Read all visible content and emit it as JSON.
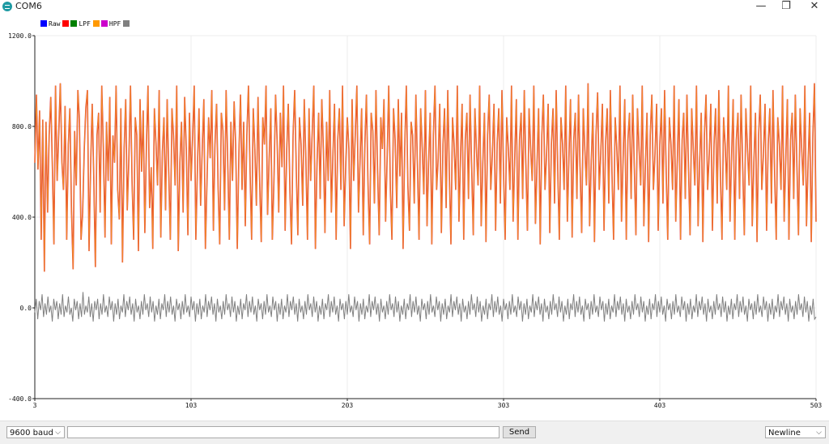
{
  "window": {
    "title": "COM6",
    "minimize": "—",
    "restore": "❐",
    "close": "✕"
  },
  "legend": [
    {
      "label": "Raw",
      "color": "#0000ff"
    },
    {
      "label": "LPF",
      "color": "#ff0000"
    },
    {
      "label": "HPF",
      "color": "#ff00ff"
    }
  ],
  "legend_colors": [
    "#0000ff",
    "#ff0000",
    "#008000",
    "#ff9900",
    "#cc00cc",
    "#808080"
  ],
  "bottom_bar": {
    "baud": "9600 baud",
    "input_value": "",
    "send_label": "Send",
    "line_ending": "Newline"
  },
  "chart_data": {
    "type": "line",
    "ylim": [
      -400,
      1200
    ],
    "xlim": [
      3,
      503
    ],
    "yticks": [
      "1200.0",
      "800.0",
      "400.0",
      "0.0",
      "-400.0"
    ],
    "xticks": [
      "3",
      "103",
      "203",
      "303",
      "403",
      "503"
    ],
    "grid": true,
    "series": [
      {
        "name": "LPF",
        "color": "#f28c28",
        "values": [
          640,
          940,
          610,
          870,
          300,
          830,
          160,
          820,
          420,
          760,
          930,
          620,
          280,
          980,
          560,
          760,
          990,
          640,
          520,
          890,
          300,
          720,
          880,
          430,
          170,
          780,
          540,
          960,
          830,
          300,
          420,
          700,
          880,
          960,
          250,
          620,
          900,
          560,
          180,
          760,
          860,
          420,
          980,
          700,
          310,
          820,
          560,
          930,
          280,
          760,
          640,
          980,
          520,
          390,
          880,
          200,
          700,
          920,
          430,
          660,
          980,
          560,
          300,
          840,
          760,
          250,
          920,
          600,
          870,
          330,
          720,
          980,
          440,
          620,
          260,
          880,
          720,
          540,
          960,
          310,
          690,
          840,
          430,
          920,
          600,
          300,
          880,
          760,
          540,
          980,
          250,
          640,
          820,
          420,
          930,
          700,
          320,
          860,
          560,
          760,
          980,
          300,
          620,
          880,
          450,
          700,
          920,
          260,
          560,
          840,
          660,
          960,
          340,
          720,
          900,
          520,
          280,
          860,
          780,
          430,
          960,
          640,
          300,
          820,
          560,
          910,
          720,
          260,
          680,
          940,
          520,
          820,
          360,
          760,
          980,
          600,
          300,
          880,
          700,
          450,
          930,
          560,
          290,
          840,
          720,
          980,
          410,
          660,
          880,
          300,
          560,
          940,
          740,
          420,
          860,
          620,
          980,
          340,
          700,
          900,
          520,
          280,
          760,
          960,
          600,
          320,
          840,
          720,
          450,
          920,
          660,
          300,
          880,
          560,
          780,
          980,
          260,
          640,
          860,
          480,
          920,
          700,
          330,
          820,
          560,
          960,
          420,
          680,
          900,
          300,
          740,
          880,
          520,
          980,
          360,
          620,
          840,
          700,
          260,
          920,
          560,
          760,
          980,
          420,
          660,
          880,
          320,
          720,
          940,
          540,
          280,
          860,
          780,
          460,
          960,
          600,
          320,
          840,
          700,
          920,
          380,
          660,
          980,
          520,
          300,
          880,
          740,
          440,
          920,
          580,
          860,
          260,
          700,
          980,
          540,
          340,
          820,
          760,
          460,
          940,
          620,
          300,
          880,
          700,
          500,
          960,
          360,
          640,
          860,
          280,
          760,
          980,
          520,
          660,
          900,
          330,
          720,
          880,
          440,
          960,
          600,
          280,
          840,
          720,
          520,
          980,
          380,
          660,
          900,
          300,
          740,
          860,
          480,
          940,
          620,
          320,
          880,
          700,
          540,
          980,
          360,
          640,
          860,
          290,
          760,
          940,
          520,
          680,
          900,
          340,
          720,
          880,
          460,
          960,
          600,
          300,
          840,
          700,
          520,
          980,
          380,
          660,
          920,
          300,
          740,
          860,
          480,
          960,
          620,
          340,
          880,
          700,
          560,
          980,
          370,
          640,
          880,
          280,
          760,
          940,
          520,
          680,
          900,
          330,
          720,
          880,
          460,
          960,
          600,
          300,
          840,
          720,
          520,
          980,
          380,
          660,
          920,
          310,
          740,
          860,
          480,
          940,
          620,
          330,
          880,
          700,
          540,
          990,
          360,
          640,
          860,
          290,
          760,
          950,
          520,
          680,
          900,
          340,
          720,
          880,
          460,
          960,
          600,
          300,
          840,
          710,
          520,
          980,
          380,
          660,
          920,
          300,
          740,
          860,
          480,
          940,
          620,
          320,
          880,
          700,
          540,
          980,
          360,
          640,
          860,
          290,
          760,
          940,
          520,
          680,
          900,
          340,
          720,
          880,
          460,
          960,
          600,
          300,
          840,
          720,
          520,
          980,
          380,
          660,
          920,
          300,
          740,
          860,
          480,
          940,
          620,
          320,
          880,
          700,
          540,
          980,
          360,
          640,
          860,
          290,
          760,
          940,
          520,
          680,
          900,
          340,
          720,
          880,
          460,
          960,
          600,
          300,
          840,
          720,
          520,
          980,
          380,
          660,
          920,
          300,
          740,
          860,
          480,
          940,
          620,
          320,
          880,
          700,
          540,
          980,
          360,
          640,
          860,
          290,
          760,
          940,
          520,
          680,
          900,
          340,
          720,
          880,
          460,
          960,
          600,
          300,
          840,
          720,
          520,
          980,
          380,
          660,
          920,
          300,
          740,
          860,
          480,
          940,
          620,
          320,
          880,
          700,
          540,
          980,
          360,
          640,
          860,
          290,
          760,
          990,
          380
        ]
      },
      {
        "name": "HPF",
        "color": "#808080",
        "values": [
          -20,
          40,
          -50,
          30,
          -10,
          60,
          -40,
          20,
          -30,
          50,
          -20,
          10,
          -60,
          40,
          -10,
          30,
          -50,
          20,
          -30,
          60,
          -40,
          10,
          -20,
          50,
          -30,
          0,
          -60,
          40,
          -10,
          30,
          -50,
          20,
          -40,
          70,
          -30,
          10,
          -20,
          50,
          -40,
          20,
          -60,
          30,
          -10,
          40,
          -50,
          20,
          -30,
          60,
          -20,
          10,
          -40,
          50,
          -10,
          30,
          -60,
          20,
          -30,
          40,
          -50,
          10,
          -20,
          60,
          -40,
          30,
          -10,
          50,
          -30,
          20,
          -60,
          40,
          -20,
          10,
          -50,
          30,
          -30,
          60,
          -10,
          20,
          -40,
          50,
          -20,
          30,
          -60,
          10,
          -30,
          40,
          -50,
          20,
          -10,
          60,
          -40,
          30,
          -20,
          50,
          -30,
          10,
          -60,
          40,
          -10,
          20,
          -50,
          30,
          -30,
          60,
          -20,
          10,
          -40,
          50,
          -10,
          30,
          -60,
          20,
          -30,
          40,
          -50,
          10,
          -20,
          60,
          -40,
          30,
          -10,
          50,
          -30,
          20,
          -60,
          40,
          -20,
          10,
          -50,
          30,
          -30,
          60,
          -10,
          20,
          -40,
          50,
          -20,
          30,
          -60,
          10,
          -30,
          40,
          -50,
          20,
          -10,
          60,
          -40,
          30,
          -20,
          50,
          -30,
          10,
          -60,
          40,
          -10,
          20,
          -50,
          30,
          -30,
          60,
          -20,
          10,
          -40,
          50,
          -10,
          30,
          -60,
          20,
          -30,
          40,
          -50,
          10,
          -20,
          60,
          -40,
          30,
          -10,
          50,
          -30,
          20,
          -60,
          40,
          -20,
          10,
          -50,
          30,
          -30,
          60,
          -10,
          20,
          -40,
          50,
          -20,
          30,
          -60,
          10,
          -30,
          40,
          -50,
          20,
          -10,
          60,
          -40,
          30,
          -20,
          50,
          -30,
          10,
          -60,
          40,
          -10,
          20,
          -50,
          30,
          -30,
          60,
          -20,
          10,
          -40,
          50,
          -10,
          30,
          -60,
          20,
          -30,
          40,
          -50,
          10,
          -20,
          60,
          -40,
          30,
          -10,
          50,
          -30,
          20,
          -60,
          40,
          -20,
          10,
          -50,
          30,
          -30,
          60,
          -10,
          20,
          -40,
          50,
          -20,
          30,
          -60,
          10,
          -30,
          40,
          -50,
          20,
          -10,
          60,
          -40,
          30,
          -20,
          50,
          -30,
          10,
          -60,
          40,
          -10,
          20,
          -50,
          30,
          -30,
          60,
          -20,
          10,
          -40,
          50,
          -10,
          30,
          -60,
          20,
          -30,
          40,
          -50,
          10,
          -20,
          60,
          -40,
          30,
          -10,
          50,
          -30,
          20,
          -60,
          40,
          -20,
          10,
          -50,
          30,
          -30,
          60,
          -10,
          20,
          -40,
          50,
          -20,
          30,
          -60,
          10,
          -30,
          40,
          -50,
          20,
          -10,
          60,
          -40,
          30,
          -20,
          50,
          -30,
          10,
          -60,
          40,
          -10,
          20,
          -50,
          30,
          -30,
          60,
          -20,
          10,
          -40,
          50,
          -10,
          30,
          -60,
          20,
          -30,
          40,
          -50,
          10,
          -20,
          60,
          -40,
          30,
          -10,
          50,
          -30,
          20,
          -60,
          40,
          -20,
          10,
          -50,
          30,
          -30,
          60,
          -10,
          20,
          -40,
          50,
          -20,
          30,
          -60,
          10,
          -30,
          40,
          -50,
          20,
          -10,
          60,
          -40,
          30,
          -20,
          50,
          -30,
          10,
          -60,
          40,
          -10,
          20,
          -50,
          30,
          -30,
          60,
          -20,
          10,
          -40,
          50,
          -10,
          30,
          -60,
          20,
          -30,
          40,
          -50,
          10,
          -20,
          60,
          -40,
          30,
          -10,
          50,
          -30,
          20,
          -60,
          40,
          -20,
          10,
          -50,
          30,
          -30,
          60,
          -10,
          20,
          -40,
          50,
          -20,
          30,
          -60,
          10,
          -30,
          40,
          -50,
          20,
          -10,
          60,
          -40,
          30,
          -20,
          50,
          -30,
          10,
          -60,
          40,
          -10,
          20,
          -50,
          30,
          -30,
          60,
          -20,
          10,
          -40,
          50,
          -10,
          30,
          -60,
          20,
          -30,
          40,
          -50,
          10,
          -20,
          60,
          -40,
          30,
          -10,
          50,
          -30,
          20,
          -60,
          40,
          -20,
          10,
          -50,
          30,
          -30,
          60,
          -10,
          20,
          -40,
          50,
          -20,
          30,
          -60,
          10,
          -30,
          40,
          -50,
          20,
          -10,
          60,
          -40,
          30,
          -20,
          50,
          -30,
          10,
          -60,
          40,
          -10,
          20,
          -50,
          30,
          -30,
          60,
          -20,
          10,
          -40,
          50,
          -10,
          30,
          -60,
          20,
          -30,
          40,
          -50,
          10,
          -20,
          60,
          -40,
          30,
          -10,
          50,
          -30,
          20,
          -60,
          40,
          -20,
          10,
          -50,
          30,
          -30,
          60,
          -10,
          20,
          -40,
          50,
          -20,
          30,
          -60,
          10,
          -30,
          40,
          -50,
          -40
        ]
      }
    ]
  }
}
